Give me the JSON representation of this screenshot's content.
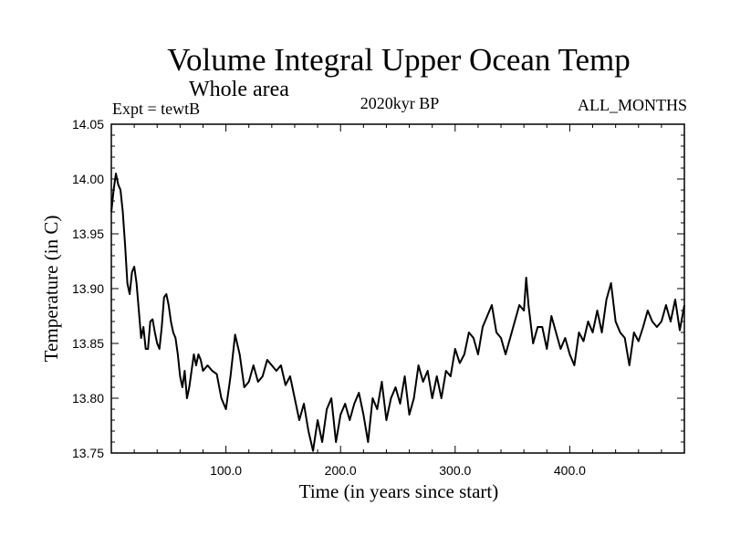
{
  "chart_data": {
    "type": "line",
    "title": "Volume Integral Upper Ocean Temp",
    "subtitle": "Whole area",
    "annotations": {
      "left": "Expt = tewtB",
      "center": "2020kyr BP",
      "right": "ALL_MONTHS"
    },
    "xlabel": "Time (in years since start)",
    "ylabel": "Temperature (in C)",
    "xlim": [
      0,
      500
    ],
    "ylim": [
      13.75,
      14.05
    ],
    "xticks": [
      100,
      200,
      300,
      400
    ],
    "xtick_labels": [
      "100.0",
      "200.0",
      "300.0",
      "400.0"
    ],
    "yticks": [
      13.75,
      13.8,
      13.85,
      13.9,
      13.95,
      14.0,
      14.05
    ],
    "ytick_labels": [
      "13.75",
      "13.80",
      "13.85",
      "13.90",
      "13.95",
      "14.00",
      "14.05"
    ],
    "grid": false,
    "series": [
      {
        "name": "tewtB",
        "x": [
          0,
          2,
          4,
          6,
          8,
          10,
          12,
          14,
          16,
          18,
          20,
          22,
          24,
          26,
          28,
          30,
          32,
          34,
          36,
          38,
          40,
          42,
          44,
          46,
          48,
          50,
          52,
          54,
          56,
          58,
          60,
          62,
          64,
          66,
          68,
          70,
          72,
          74,
          76,
          78,
          80,
          84,
          88,
          92,
          96,
          100,
          104,
          108,
          112,
          116,
          120,
          124,
          128,
          132,
          136,
          140,
          144,
          148,
          152,
          156,
          160,
          164,
          168,
          172,
          176,
          180,
          184,
          188,
          192,
          196,
          200,
          204,
          208,
          212,
          216,
          220,
          224,
          228,
          232,
          236,
          240,
          244,
          248,
          252,
          256,
          260,
          264,
          268,
          272,
          276,
          280,
          284,
          288,
          292,
          296,
          300,
          304,
          308,
          312,
          316,
          320,
          324,
          328,
          332,
          336,
          340,
          344,
          348,
          352,
          356,
          360,
          362,
          364,
          368,
          372,
          376,
          380,
          384,
          388,
          392,
          396,
          400,
          404,
          408,
          412,
          416,
          420,
          424,
          428,
          432,
          436,
          440,
          444,
          448,
          452,
          456,
          460,
          464,
          468,
          472,
          476,
          480,
          484,
          488,
          492,
          496,
          500
        ],
        "values": [
          13.97,
          13.99,
          14.005,
          13.995,
          13.99,
          13.97,
          13.94,
          13.905,
          13.895,
          13.915,
          13.92,
          13.905,
          13.88,
          13.855,
          13.865,
          13.845,
          13.845,
          13.87,
          13.872,
          13.86,
          13.85,
          13.845,
          13.865,
          13.892,
          13.895,
          13.885,
          13.87,
          13.86,
          13.855,
          13.84,
          13.82,
          13.81,
          13.825,
          13.8,
          13.81,
          13.825,
          13.84,
          13.83,
          13.84,
          13.835,
          13.825,
          13.83,
          13.825,
          13.822,
          13.8,
          13.79,
          13.82,
          13.858,
          13.84,
          13.81,
          13.815,
          13.83,
          13.815,
          13.82,
          13.835,
          13.83,
          13.825,
          13.83,
          13.812,
          13.82,
          13.8,
          13.78,
          13.795,
          13.77,
          13.752,
          13.78,
          13.76,
          13.79,
          13.8,
          13.76,
          13.785,
          13.795,
          13.78,
          13.795,
          13.805,
          13.785,
          13.76,
          13.8,
          13.79,
          13.815,
          13.78,
          13.8,
          13.81,
          13.795,
          13.82,
          13.785,
          13.8,
          13.83,
          13.815,
          13.825,
          13.8,
          13.82,
          13.8,
          13.825,
          13.82,
          13.845,
          13.832,
          13.84,
          13.86,
          13.855,
          13.84,
          13.865,
          13.875,
          13.885,
          13.86,
          13.855,
          13.84,
          13.855,
          13.87,
          13.885,
          13.88,
          13.91,
          13.885,
          13.85,
          13.865,
          13.865,
          13.845,
          13.875,
          13.86,
          13.845,
          13.855,
          13.84,
          13.83,
          13.86,
          13.852,
          13.87,
          13.86,
          13.88,
          13.86,
          13.89,
          13.905,
          13.87,
          13.86,
          13.855,
          13.83,
          13.86,
          13.852,
          13.865,
          13.88,
          13.87,
          13.865,
          13.87,
          13.885,
          13.87,
          13.89,
          13.862,
          13.885
        ]
      }
    ]
  }
}
